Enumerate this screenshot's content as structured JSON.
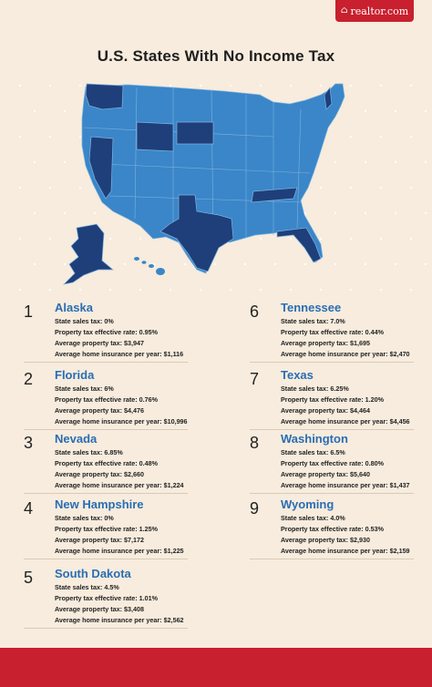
{
  "brand": {
    "name": "realtor.com",
    "icon": "house-icon"
  },
  "title": "U.S. States With No Income Tax",
  "colors": {
    "background": "#f7ecdd",
    "highlight": "#1f3f7a",
    "states": "#3a86c8",
    "accent": "#c8202f",
    "state_name": "#2a6db5"
  },
  "states": [
    {
      "rank": "1",
      "name": "Alaska",
      "lines": [
        "State sales tax: 0%",
        "Property tax effective rate: 0.95%",
        "Average property tax: $3,947",
        "Average home insurance per year: $1,116"
      ]
    },
    {
      "rank": "2",
      "name": "Florida",
      "lines": [
        "State sales tax: 6%",
        "Property tax effective rate: 0.76%",
        "Average property tax: $4,476",
        "Average home insurance per year: $10,996"
      ]
    },
    {
      "rank": "3",
      "name": "Nevada",
      "lines": [
        "State sales tax: 6.85%",
        "Property tax effective rate: 0.48%",
        "Average property tax: $2,660",
        "Average home insurance per year: $1,224"
      ]
    },
    {
      "rank": "4",
      "name": "New Hampshire",
      "lines": [
        "State sales tax: 0%",
        "Property tax effective rate: 1.25%",
        "Average property tax: $7,172",
        "Average home insurance per year: $1,225"
      ]
    },
    {
      "rank": "5",
      "name": "South Dakota",
      "lines": [
        "State sales tax: 4.5%",
        "Property tax effective rate: 1.01%",
        "Average property tax: $3,408",
        "Average home insurance per year: $2,562"
      ]
    },
    {
      "rank": "6",
      "name": "Tennessee",
      "lines": [
        "State sales tax: 7.0%",
        "Property tax effective rate: 0.44%",
        "Average property tax: $1,695",
        "Average home insurance per year: $2,470"
      ]
    },
    {
      "rank": "7",
      "name": "Texas",
      "lines": [
        "State sales tax: 6.25%",
        "Property tax effective rate: 1.20%",
        "Average property tax: $4,464",
        "Average home insurance per year: $4,456"
      ]
    },
    {
      "rank": "8",
      "name": "Washington",
      "lines": [
        "State sales tax: 6.5%",
        "Property tax effective rate: 0.80%",
        "Average property tax: $5,640",
        "Average home insurance per year: $1,437"
      ]
    },
    {
      "rank": "9",
      "name": "Wyoming",
      "lines": [
        "State sales tax: 4.0%",
        "Property tax effective rate: 0.53%",
        "Average property tax: $2,930",
        "Average home insurance per year: $2,159"
      ]
    }
  ]
}
